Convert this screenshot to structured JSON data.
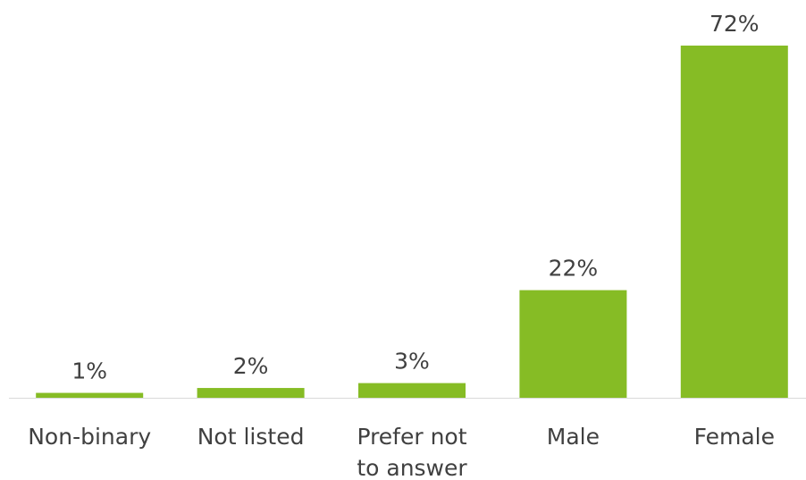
{
  "chart_data": {
    "type": "bar",
    "categories": [
      [
        "Non-binary"
      ],
      [
        "Not listed"
      ],
      [
        "Prefer not",
        "to answer"
      ],
      [
        "Male"
      ],
      [
        "Female"
      ]
    ],
    "values": [
      1,
      2,
      3,
      22,
      72
    ],
    "data_labels": [
      "1%",
      "2%",
      "3%",
      "22%",
      "72%"
    ],
    "title": "",
    "xlabel": "",
    "ylabel": "",
    "ylim": [
      0,
      72
    ],
    "grid": false,
    "legend": "none",
    "colors": {
      "bar": "#86BC25",
      "axis": "#d9d9d9",
      "text": "#404040"
    }
  }
}
